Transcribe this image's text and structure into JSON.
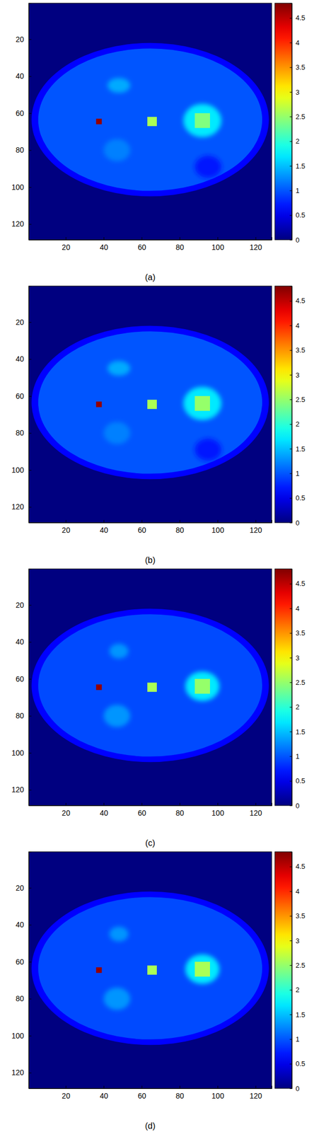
{
  "chart_data": [
    {
      "type": "heatmap",
      "title": "(a)",
      "xlim": [
        0.5,
        128.5
      ],
      "ylim": [
        0.5,
        128.5
      ],
      "xticks": [
        20,
        40,
        60,
        80,
        100,
        120
      ],
      "yticks": [
        20,
        40,
        60,
        80,
        100,
        120
      ],
      "colorbar": {
        "range": [
          0,
          4.8
        ],
        "ticks": [
          0,
          0.5,
          1,
          1.5,
          2,
          2.5,
          3,
          3.5,
          4,
          4.5
        ]
      },
      "background": 0,
      "regions": [
        {
          "shape": "ellipse",
          "cx": 64.5,
          "cy": 63.5,
          "rx": 62.5,
          "ry": 41.5,
          "value": 0.6
        },
        {
          "shape": "ellipse",
          "cx": 64.5,
          "cy": 63.5,
          "rx": 59,
          "ry": 38.5,
          "value": 1.0
        },
        {
          "shape": "ellipse",
          "cx": 95,
          "cy": 89,
          "rx": 7,
          "ry": 6,
          "value": 0.7
        },
        {
          "shape": "ellipse",
          "cx": 48,
          "cy": 45,
          "rx": 6,
          "ry": 4,
          "value": 1.4
        },
        {
          "shape": "ellipse",
          "cx": 47,
          "cy": 80,
          "rx": 7,
          "ry": 6,
          "value": 1.2
        },
        {
          "shape": "ellipse",
          "cx": 92,
          "cy": 64,
          "rx": 10,
          "ry": 9,
          "value": 1.7
        },
        {
          "shape": "rect",
          "x0": 36,
          "x1": 39,
          "y0": 63,
          "y1": 66,
          "value": 4.7
        },
        {
          "shape": "rect",
          "x0": 63,
          "x1": 68,
          "y0": 62,
          "y1": 67,
          "value": 2.6
        },
        {
          "shape": "rect",
          "x0": 88,
          "x1": 96,
          "y0": 60,
          "y1": 68,
          "value": 2.4
        }
      ]
    },
    {
      "type": "heatmap",
      "title": "(b)",
      "xlim": [
        0.5,
        128.5
      ],
      "ylim": [
        0.5,
        128.5
      ],
      "xticks": [
        20,
        40,
        60,
        80,
        100,
        120
      ],
      "yticks": [
        20,
        40,
        60,
        80,
        100,
        120
      ],
      "colorbar": {
        "range": [
          0,
          4.8
        ],
        "ticks": [
          0,
          0.5,
          1,
          1.5,
          2,
          2.5,
          3,
          3.5,
          4,
          4.5
        ]
      },
      "background": 0,
      "regions": [
        {
          "shape": "ellipse",
          "cx": 64.5,
          "cy": 63.5,
          "rx": 62.5,
          "ry": 41.5,
          "value": 0.6
        },
        {
          "shape": "ellipse",
          "cx": 64.5,
          "cy": 63.5,
          "rx": 59,
          "ry": 38.5,
          "value": 1.0
        },
        {
          "shape": "ellipse",
          "cx": 95,
          "cy": 89,
          "rx": 7,
          "ry": 6,
          "value": 0.7
        },
        {
          "shape": "ellipse",
          "cx": 48,
          "cy": 45,
          "rx": 6,
          "ry": 4,
          "value": 1.4
        },
        {
          "shape": "ellipse",
          "cx": 47,
          "cy": 80,
          "rx": 7,
          "ry": 6,
          "value": 1.2
        },
        {
          "shape": "ellipse",
          "cx": 92,
          "cy": 64,
          "rx": 10,
          "ry": 9,
          "value": 1.7
        },
        {
          "shape": "rect",
          "x0": 36,
          "x1": 39,
          "y0": 63,
          "y1": 66,
          "value": 4.7
        },
        {
          "shape": "rect",
          "x0": 63,
          "x1": 68,
          "y0": 62,
          "y1": 67,
          "value": 2.6
        },
        {
          "shape": "rect",
          "x0": 88,
          "x1": 96,
          "y0": 60,
          "y1": 68,
          "value": 2.5
        }
      ]
    },
    {
      "type": "heatmap",
      "title": "(c)",
      "xlim": [
        0.5,
        128.5
      ],
      "ylim": [
        0.5,
        128.5
      ],
      "xticks": [
        20,
        40,
        60,
        80,
        100,
        120
      ],
      "yticks": [
        20,
        40,
        60,
        80,
        100,
        120
      ],
      "colorbar": {
        "range": [
          0,
          4.8
        ],
        "ticks": [
          0,
          0.5,
          1,
          1.5,
          2,
          2.5,
          3,
          3.5,
          4,
          4.5
        ]
      },
      "background": 0,
      "regions": [
        {
          "shape": "ellipse",
          "cx": 64.5,
          "cy": 63.5,
          "rx": 62.5,
          "ry": 41.5,
          "value": 0.6
        },
        {
          "shape": "ellipse",
          "cx": 64.5,
          "cy": 63.5,
          "rx": 59,
          "ry": 38.5,
          "value": 0.95
        },
        {
          "shape": "ellipse",
          "cx": 48,
          "cy": 45,
          "rx": 5,
          "ry": 4,
          "value": 1.3
        },
        {
          "shape": "ellipse",
          "cx": 47,
          "cy": 80,
          "rx": 7,
          "ry": 6,
          "value": 1.3
        },
        {
          "shape": "ellipse",
          "cx": 92,
          "cy": 64,
          "rx": 9,
          "ry": 8,
          "value": 1.7
        },
        {
          "shape": "rect",
          "x0": 36,
          "x1": 39,
          "y0": 63,
          "y1": 66,
          "value": 4.7
        },
        {
          "shape": "rect",
          "x0": 63,
          "x1": 68,
          "y0": 62,
          "y1": 67,
          "value": 2.6
        },
        {
          "shape": "rect",
          "x0": 88,
          "x1": 96,
          "y0": 60,
          "y1": 68,
          "value": 2.5
        }
      ]
    },
    {
      "type": "heatmap",
      "title": "(d)",
      "xlim": [
        0.5,
        128.5
      ],
      "ylim": [
        0.5,
        128.5
      ],
      "xticks": [
        20,
        40,
        60,
        80,
        100,
        120
      ],
      "yticks": [
        20,
        40,
        60,
        80,
        100,
        120
      ],
      "colorbar": {
        "range": [
          0,
          4.8
        ],
        "ticks": [
          0,
          0.5,
          1,
          1.5,
          2,
          2.5,
          3,
          3.5,
          4,
          4.5
        ]
      },
      "background": 0,
      "regions": [
        {
          "shape": "ellipse",
          "cx": 64.5,
          "cy": 63.5,
          "rx": 62.5,
          "ry": 41.5,
          "value": 0.6
        },
        {
          "shape": "ellipse",
          "cx": 64.5,
          "cy": 63.5,
          "rx": 59,
          "ry": 38.5,
          "value": 0.95
        },
        {
          "shape": "ellipse",
          "cx": 48,
          "cy": 45,
          "rx": 5,
          "ry": 4,
          "value": 1.3
        },
        {
          "shape": "ellipse",
          "cx": 47,
          "cy": 80,
          "rx": 7,
          "ry": 6,
          "value": 1.3
        },
        {
          "shape": "ellipse",
          "cx": 92,
          "cy": 64,
          "rx": 9,
          "ry": 8,
          "value": 1.7
        },
        {
          "shape": "rect",
          "x0": 36,
          "x1": 39,
          "y0": 63,
          "y1": 66,
          "value": 4.7
        },
        {
          "shape": "rect",
          "x0": 63,
          "x1": 68,
          "y0": 62,
          "y1": 67,
          "value": 2.6
        },
        {
          "shape": "rect",
          "x0": 88,
          "x1": 96,
          "y0": 60,
          "y1": 68,
          "value": 2.6
        }
      ]
    }
  ]
}
